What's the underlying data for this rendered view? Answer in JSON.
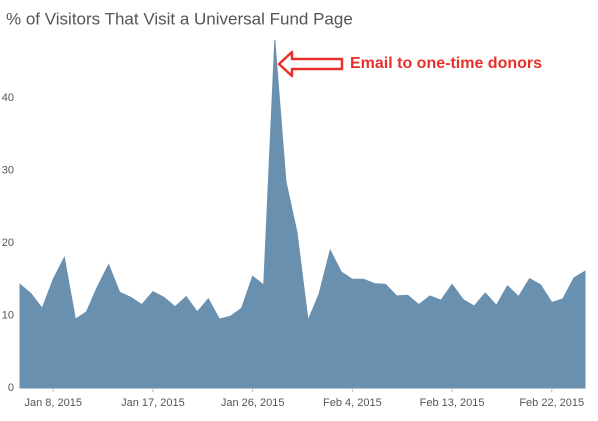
{
  "chart_data": {
    "type": "area",
    "title": "% of Visitors That Visit a Universal Fund Page",
    "annotation": "Email to one-time donors",
    "color": "#6a90b0",
    "x": [
      "2015-01-05",
      "2015-01-06",
      "2015-01-07",
      "2015-01-08",
      "2015-01-09",
      "2015-01-10",
      "2015-01-11",
      "2015-01-12",
      "2015-01-13",
      "2015-01-14",
      "2015-01-15",
      "2015-01-16",
      "2015-01-17",
      "2015-01-18",
      "2015-01-19",
      "2015-01-20",
      "2015-01-21",
      "2015-01-22",
      "2015-01-23",
      "2015-01-24",
      "2015-01-25",
      "2015-01-26",
      "2015-01-27",
      "2015-01-28",
      "2015-01-29",
      "2015-01-30",
      "2015-01-31",
      "2015-02-01",
      "2015-02-02",
      "2015-02-03",
      "2015-02-04",
      "2015-02-05",
      "2015-02-06",
      "2015-02-07",
      "2015-02-08",
      "2015-02-09",
      "2015-02-10",
      "2015-02-11",
      "2015-02-12",
      "2015-02-13",
      "2015-02-14",
      "2015-02-15",
      "2015-02-16",
      "2015-02-17",
      "2015-02-18",
      "2015-02-19",
      "2015-02-20",
      "2015-02-21",
      "2015-02-22",
      "2015-02-23",
      "2015-02-24",
      "2015-02-25"
    ],
    "values": [
      14.3,
      13,
      11,
      15,
      18,
      9.5,
      10.5,
      14,
      17,
      13.2,
      12.5,
      11.5,
      13.3,
      12.5,
      11.2,
      12.6,
      10.5,
      12.3,
      9.5,
      9.9,
      11,
      15.4,
      14.2,
      48,
      28.5,
      21.5,
      9.3,
      13,
      19,
      16,
      15,
      15,
      14.4,
      14.3,
      12.7,
      12.8,
      11.5,
      12.7,
      12.1,
      14.3,
      12.2,
      11.3,
      13.1,
      11.4,
      14.1,
      12.6,
      15.1,
      14.2,
      11.8,
      12.3,
      15.2,
      16.1
    ],
    "xlim": [
      "2015-01-05",
      "2015-02-25"
    ],
    "xticks": [
      {
        "value": "2015-01-08",
        "label": "Jan 8, 2015"
      },
      {
        "value": "2015-01-17",
        "label": "Jan 17, 2015"
      },
      {
        "value": "2015-01-26",
        "label": "Jan 26, 2015"
      },
      {
        "value": "2015-02-04",
        "label": "Feb 4, 2015"
      },
      {
        "value": "2015-02-13",
        "label": "Feb 13, 2015"
      },
      {
        "value": "2015-02-22",
        "label": "Feb 22, 2015"
      }
    ],
    "ylim": [
      0,
      48
    ],
    "yticks": [
      0,
      10,
      20,
      30,
      40
    ]
  }
}
